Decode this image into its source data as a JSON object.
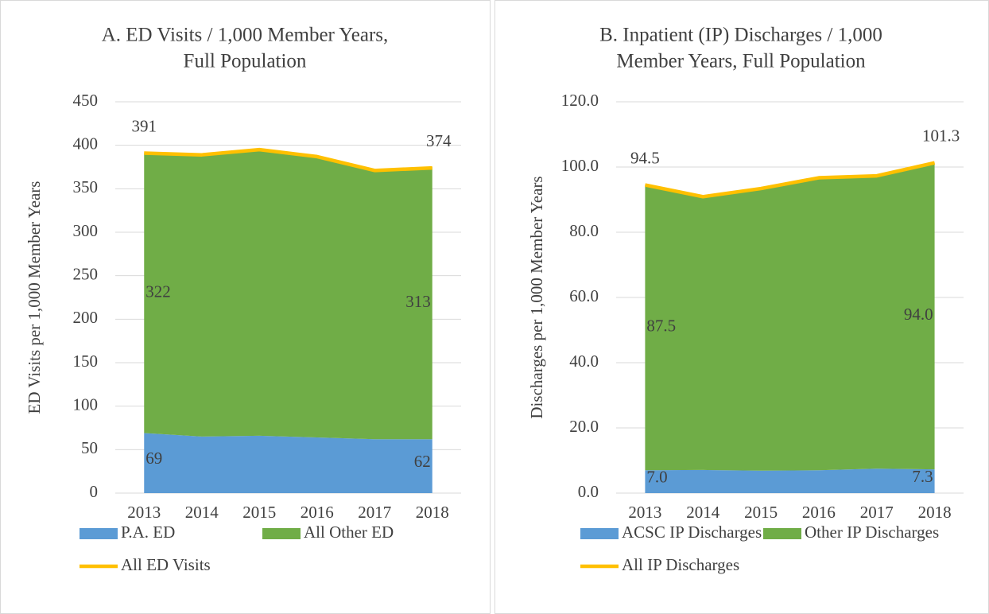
{
  "chart_data": [
    {
      "type": "area",
      "title": [
        "A. ED Visits / 1,000 Member Years,",
        "Full Population"
      ],
      "y_label": "ED Visits per 1,000 Member Years",
      "categories": [
        "2013",
        "2014",
        "2015",
        "2016",
        "2017",
        "2018"
      ],
      "ylim": [
        0,
        450
      ],
      "yticks": [
        0,
        50,
        100,
        150,
        200,
        250,
        300,
        350,
        400,
        450
      ],
      "grid": true,
      "series": [
        {
          "name": "P.A. ED",
          "color": "#5b9bd5",
          "values": [
            69,
            65,
            66,
            64,
            62,
            62
          ],
          "value_labels": [
            "69",
            null,
            null,
            null,
            null,
            "62"
          ]
        },
        {
          "name": "All Other ED",
          "color": "#70ad47",
          "values": [
            322,
            323,
            328,
            322,
            309,
            313
          ],
          "value_labels": [
            "322",
            null,
            null,
            null,
            null,
            "313"
          ]
        },
        {
          "name": "All ED Visits",
          "type": "line",
          "color": "#ffc000",
          "values": [
            391,
            389,
            395,
            387,
            371,
            374
          ],
          "value_labels": [
            "391",
            null,
            null,
            null,
            null,
            "374"
          ]
        }
      ]
    },
    {
      "type": "area",
      "title": [
        "B. Inpatient (IP) Discharges / 1,000",
        "Member Years, Full Population"
      ],
      "y_label": "Discharges per 1,000 Member Years",
      "categories": [
        "2013",
        "2014",
        "2015",
        "2016",
        "2017",
        "2018"
      ],
      "ylim": [
        0,
        120
      ],
      "yticks": [
        {
          "value": 0,
          "label": "0.0"
        },
        {
          "value": 20,
          "label": "20.0"
        },
        {
          "value": 40,
          "label": "40.0"
        },
        {
          "value": 60,
          "label": "60.0"
        },
        {
          "value": 80,
          "label": "80.0"
        },
        {
          "value": 100,
          "label": "100.0"
        },
        {
          "value": 120,
          "label": "120.0"
        }
      ],
      "grid": true,
      "series": [
        {
          "name": "ACSC IP Discharges",
          "color": "#5b9bd5",
          "values": [
            7.0,
            7.1,
            6.9,
            7.0,
            7.5,
            7.3
          ],
          "value_labels": [
            "7.0",
            null,
            null,
            null,
            null,
            "7.3"
          ]
        },
        {
          "name": "Other IP Discharges",
          "color": "#70ad47",
          "values": [
            87.5,
            83.8,
            86.5,
            89.7,
            89.8,
            94.0
          ],
          "value_labels": [
            "87.5",
            null,
            null,
            null,
            null,
            "94.0"
          ]
        },
        {
          "name": "All IP Discharges",
          "type": "line",
          "color": "#ffc000",
          "values": [
            94.5,
            90.9,
            93.4,
            96.7,
            97.3,
            101.3
          ],
          "value_labels": [
            "94.5",
            null,
            null,
            null,
            null,
            "101.3"
          ]
        }
      ]
    }
  ]
}
